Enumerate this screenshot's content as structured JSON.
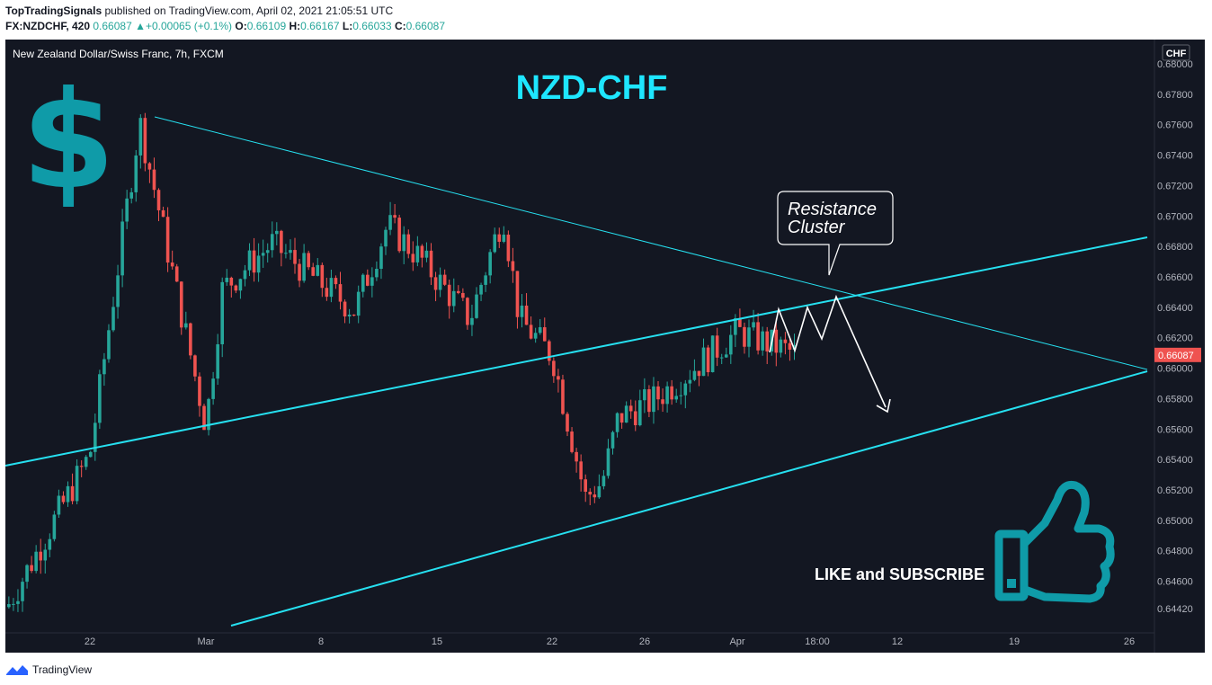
{
  "header": {
    "publisher": "TopTradingSignals",
    "published_text": " published on TradingView.com, April 02, 2021 21:05:51 UTC",
    "symbol": "FX:NZDCHF, 420",
    "last": "0.66087",
    "change_arrow": "▲",
    "change": "+0.00065 (+0.1%)",
    "o_label": "O:",
    "o": "0.66109",
    "h_label": "H:",
    "h": "0.66167",
    "l_label": "L:",
    "l": "0.66033",
    "c_label": "C:",
    "c": "0.66087"
  },
  "footer": {
    "brand": "TradingView",
    "logo_icon": "tradingview-logo-icon"
  },
  "colors": {
    "background": "#131722",
    "up": "#26a69a",
    "down": "#ef5350",
    "trendline": "#26e0f0",
    "title": "#1ee6ff",
    "icon": "#0f9ba8",
    "axis_text": "#b2b5be",
    "annotation": "#ffffff"
  },
  "chart_data": {
    "type": "candlestick",
    "instrument": "New Zealand Dollar/Swiss Franc, 7h, FXCM",
    "title": "NZD-CHF",
    "currency_label": "CHF",
    "price_tag": "0.66087",
    "ylim": [
      0.6437,
      0.6803
    ],
    "y_ticks": [
      "0.68000",
      "0.67800",
      "0.67600",
      "0.67400",
      "0.67200",
      "0.67000",
      "0.66800",
      "0.66600",
      "0.66400",
      "0.66200",
      "0.66000",
      "0.65800",
      "0.65600",
      "0.65400",
      "0.65200",
      "0.65000",
      "0.64800",
      "0.64600",
      "0.64420"
    ],
    "x_ticks": [
      "22",
      "Mar",
      "8",
      "15",
      "22",
      "26",
      "Apr",
      "18:00",
      "12",
      "19",
      "26"
    ],
    "annotations": {
      "callout": "Resistance Cluster",
      "cta": "LIKE and SUBSCRIBE",
      "left_icon": "dollar-sign-icon",
      "right_icon": "thumbs-up-icon"
    },
    "anchors": [
      {
        "x": "Feb 17",
        "y": 0.6443
      },
      {
        "x": "Feb 22",
        "y": 0.6543
      },
      {
        "x": "Feb 25",
        "y": 0.6762
      },
      {
        "x": "Mar 1",
        "y": 0.6562
      },
      {
        "x": "Mar 2",
        "y": 0.6652
      },
      {
        "x": "Mar 5",
        "y": 0.6682
      },
      {
        "x": "Mar 10",
        "y": 0.6638
      },
      {
        "x": "Mar 12",
        "y": 0.6694
      },
      {
        "x": "Mar 14",
        "y": 0.6672
      },
      {
        "x": "Mar 17",
        "y": 0.6632
      },
      {
        "x": "Mar 19",
        "y": 0.6702
      },
      {
        "x": "Mar 20",
        "y": 0.6632
      },
      {
        "x": "Mar 22",
        "y": 0.6608
      },
      {
        "x": "Mar 24",
        "y": 0.6515
      },
      {
        "x": "Mar 25",
        "y": 0.6525
      },
      {
        "x": "Mar 26",
        "y": 0.6568
      },
      {
        "x": "Mar 28",
        "y": 0.6578
      },
      {
        "x": "Mar 30",
        "y": 0.6595
      },
      {
        "x": "Apr 1",
        "y": 0.6624
      },
      {
        "x": "Apr 2",
        "y": 0.66087
      }
    ]
  }
}
